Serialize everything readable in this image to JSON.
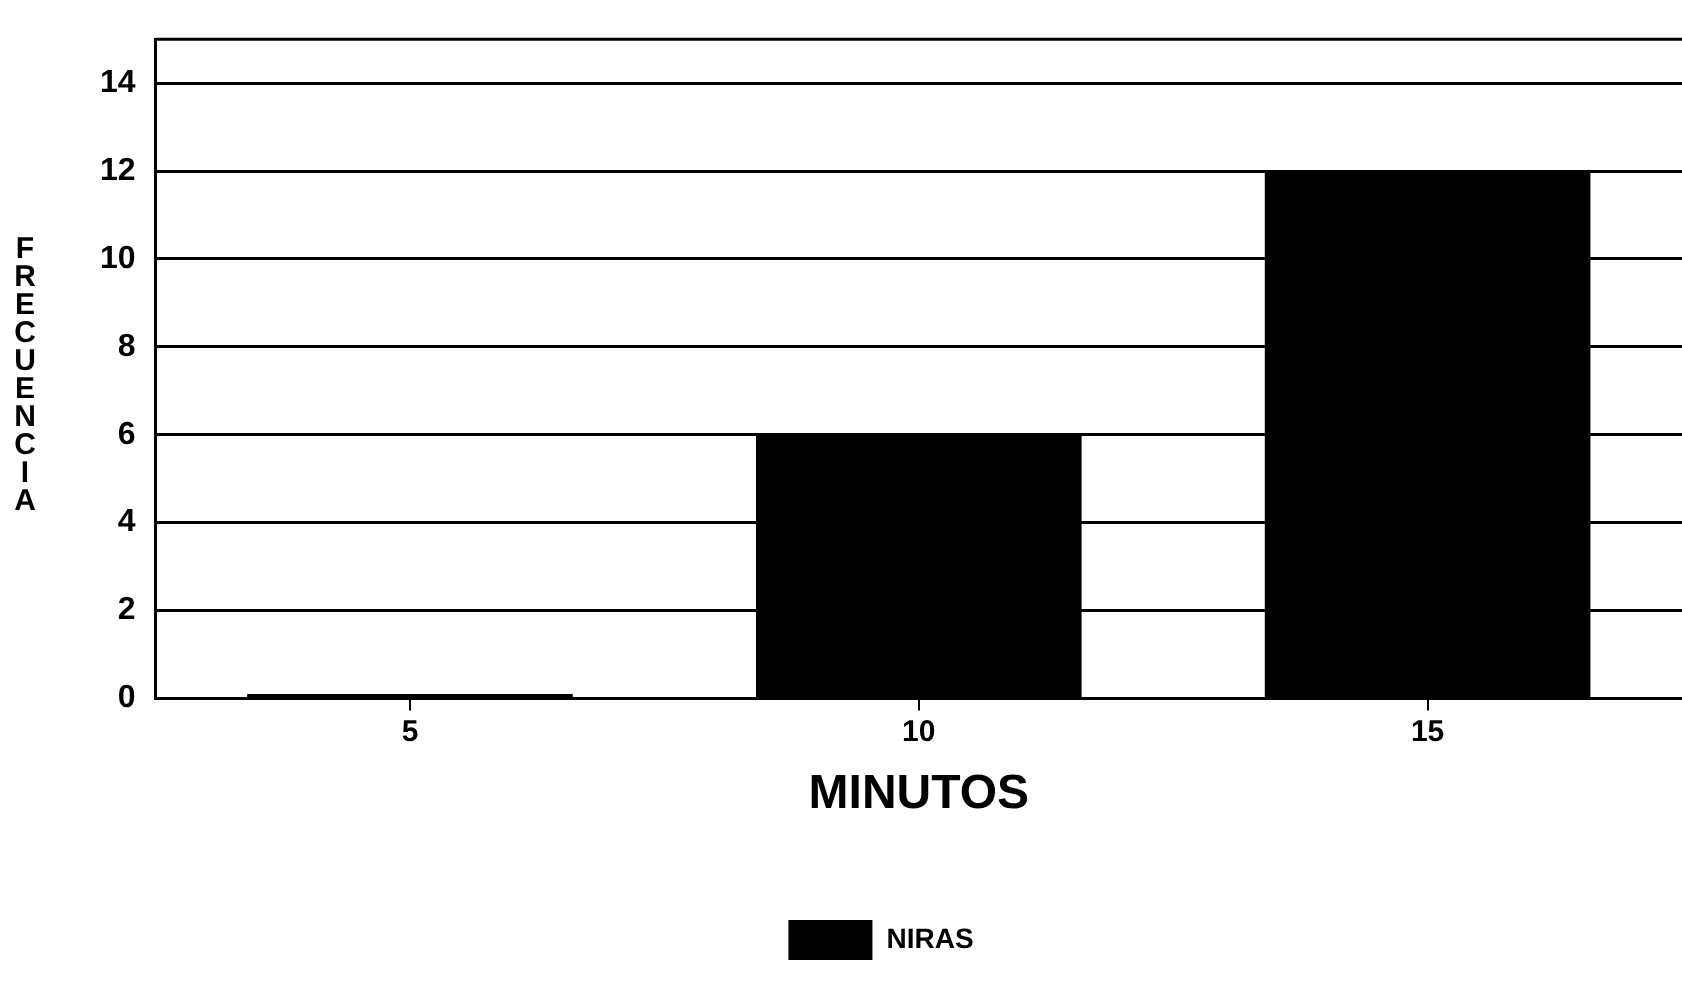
{
  "chart_data": {
    "type": "bar",
    "xlabel": "MINUTOS",
    "ylabel": "FRECUENCIA",
    "categories": [
      "5",
      "10",
      "15"
    ],
    "series": [
      {
        "name": "NIRAS",
        "color": "#000000",
        "values": [
          0.1,
          6,
          12
        ]
      }
    ],
    "ylim": [
      0,
      15
    ],
    "yticks": [
      0,
      2,
      4,
      6,
      8,
      10,
      12,
      14
    ],
    "grid": "y",
    "legend": "bottom"
  }
}
